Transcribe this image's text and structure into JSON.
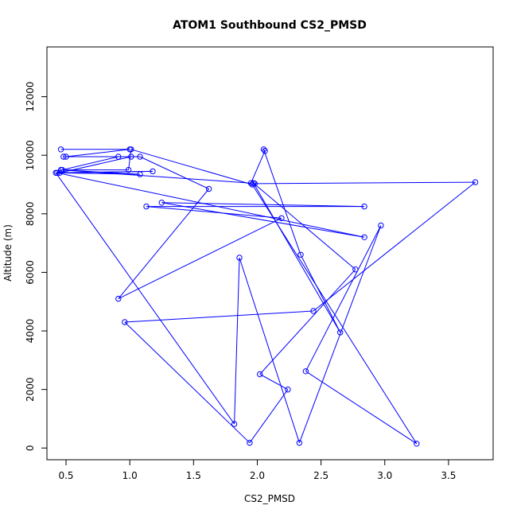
{
  "chart_data": {
    "type": "line",
    "title": "ATOM1 Southbound CS2_PMSD",
    "xlabel": "CS2_PMSD",
    "ylabel": "Altitude (m)",
    "xlim": [
      0.35,
      3.85
    ],
    "ylim": [
      -400,
      13700
    ],
    "xticks": [
      0.5,
      1.0,
      1.5,
      2.0,
      2.5,
      3.0,
      3.5
    ],
    "xtick_labels": [
      "0.5",
      "1.0",
      "1.5",
      "2.0",
      "2.5",
      "3.0",
      "3.5"
    ],
    "yticks": [
      0,
      2000,
      4000,
      6000,
      8000,
      10000,
      12000
    ],
    "ytick_labels": [
      "0",
      "2000",
      "4000",
      "6000",
      "8000",
      "10000",
      "12000"
    ],
    "grid": false,
    "series": [
      {
        "color": "#0000ff",
        "marker": "open-circle",
        "x": [
          0.46,
          1.0,
          0.5,
          1.08,
          1.62,
          0.91,
          2.19,
          1.13,
          2.84,
          1.25,
          2.84,
          0.43,
          1.18,
          0.45,
          1.01,
          0.48,
          0.91,
          0.47,
          0.99,
          1.01,
          1.96,
          3.25,
          2.38,
          2.97,
          2.33,
          1.86,
          1.82,
          0.42,
          1.08,
          0.46,
          1.95,
          2.06,
          2.05,
          2.34,
          2.65,
          1.97,
          2.77,
          2.02,
          2.24,
          1.94,
          0.96,
          2.44,
          3.71,
          1.98
        ],
        "y": [
          10200,
          10200,
          9950,
          9950,
          8850,
          5100,
          7850,
          8250,
          8250,
          8380,
          7200,
          9400,
          9450,
          9400,
          9950,
          9950,
          9950,
          9500,
          9500,
          10200,
          9000,
          150,
          2620,
          7600,
          180,
          6500,
          820,
          9400,
          9350,
          9500,
          9050,
          10150,
          10200,
          6600,
          3950,
          9050,
          6100,
          2520,
          2000,
          180,
          4300,
          4680,
          9080,
          9030
        ]
      }
    ]
  }
}
